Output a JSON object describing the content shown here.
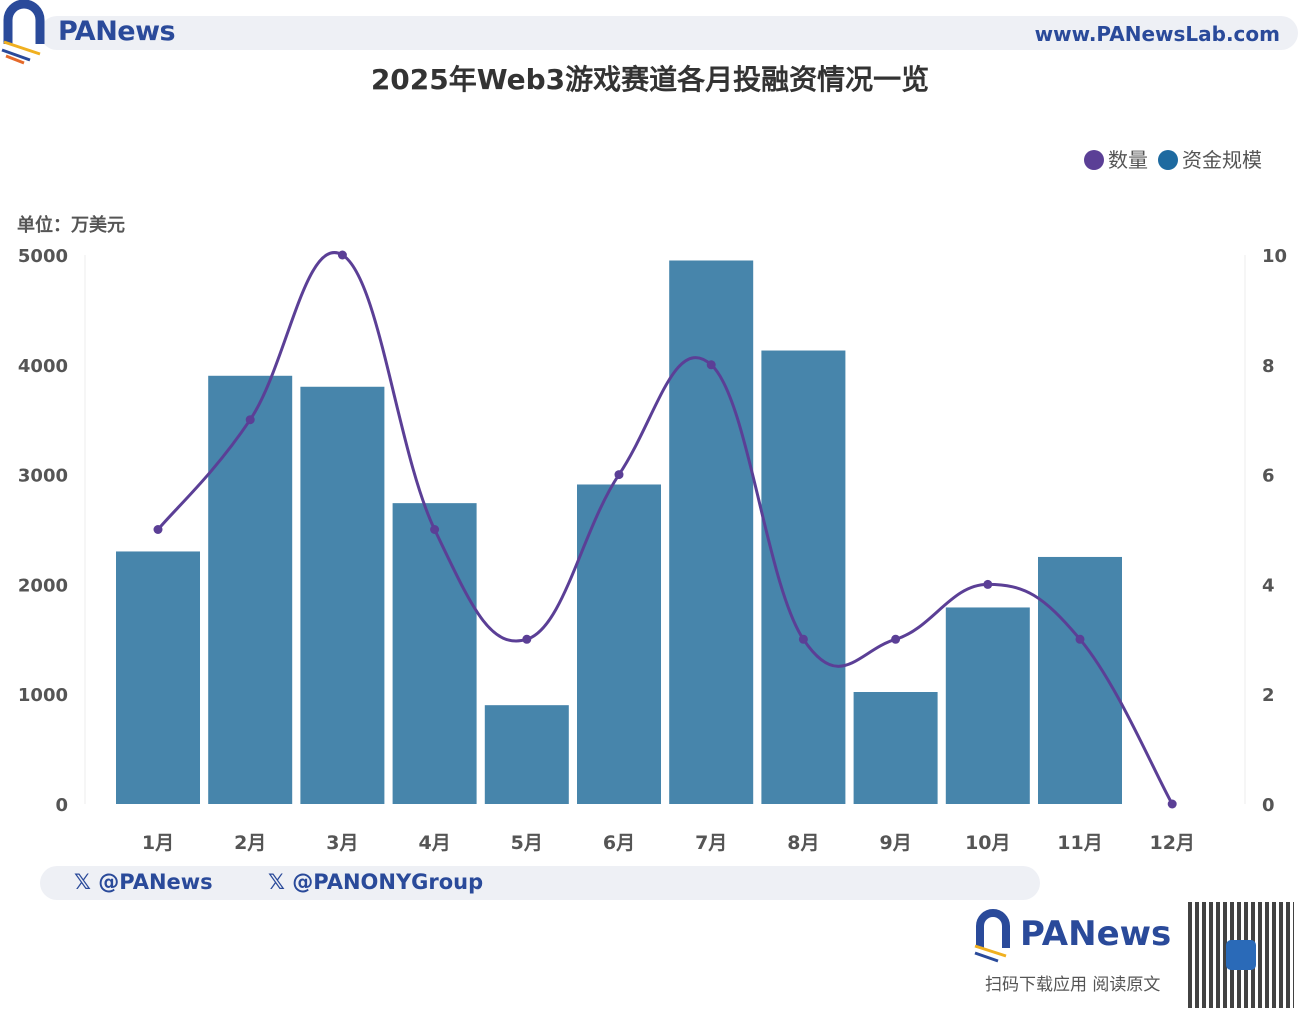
{
  "header": {
    "brand": "PANews",
    "website": "www.PANewsLab.com"
  },
  "chart_data": {
    "type": "bar",
    "title": "2025年Web3游戏赛道各月投融资情况一览",
    "unit_label": "单位：万美元",
    "categories": [
      "1月",
      "2月",
      "3月",
      "4月",
      "5月",
      "6月",
      "7月",
      "8月",
      "9月",
      "10月",
      "11月",
      "12月"
    ],
    "series": [
      {
        "name": "资金规模",
        "type": "bar",
        "axis": "left",
        "color": "#4785ab",
        "values": [
          2300,
          3900,
          3800,
          2740,
          900,
          2910,
          4950,
          4130,
          1020,
          1790,
          2250,
          0
        ]
      },
      {
        "name": "数量",
        "type": "line",
        "axis": "right",
        "color": "#5b3f96",
        "smooth": true,
        "values": [
          5,
          7,
          10,
          5,
          3,
          6,
          8,
          3,
          3,
          4,
          3,
          0
        ]
      }
    ],
    "y_left": {
      "range": [
        0,
        5000
      ],
      "ticks": [
        "0",
        "1000",
        "2000",
        "3000",
        "4000",
        "5000"
      ]
    },
    "y_right": {
      "range": [
        0,
        10
      ],
      "ticks": [
        "0",
        "2",
        "4",
        "6",
        "8",
        "10"
      ]
    },
    "legend_position": "top-right",
    "grid": false
  },
  "footer": {
    "social": [
      "@PANews",
      "@PANONYGroup"
    ],
    "brand": "PANews",
    "slogan": "扫码下载应用  阅读原文"
  }
}
